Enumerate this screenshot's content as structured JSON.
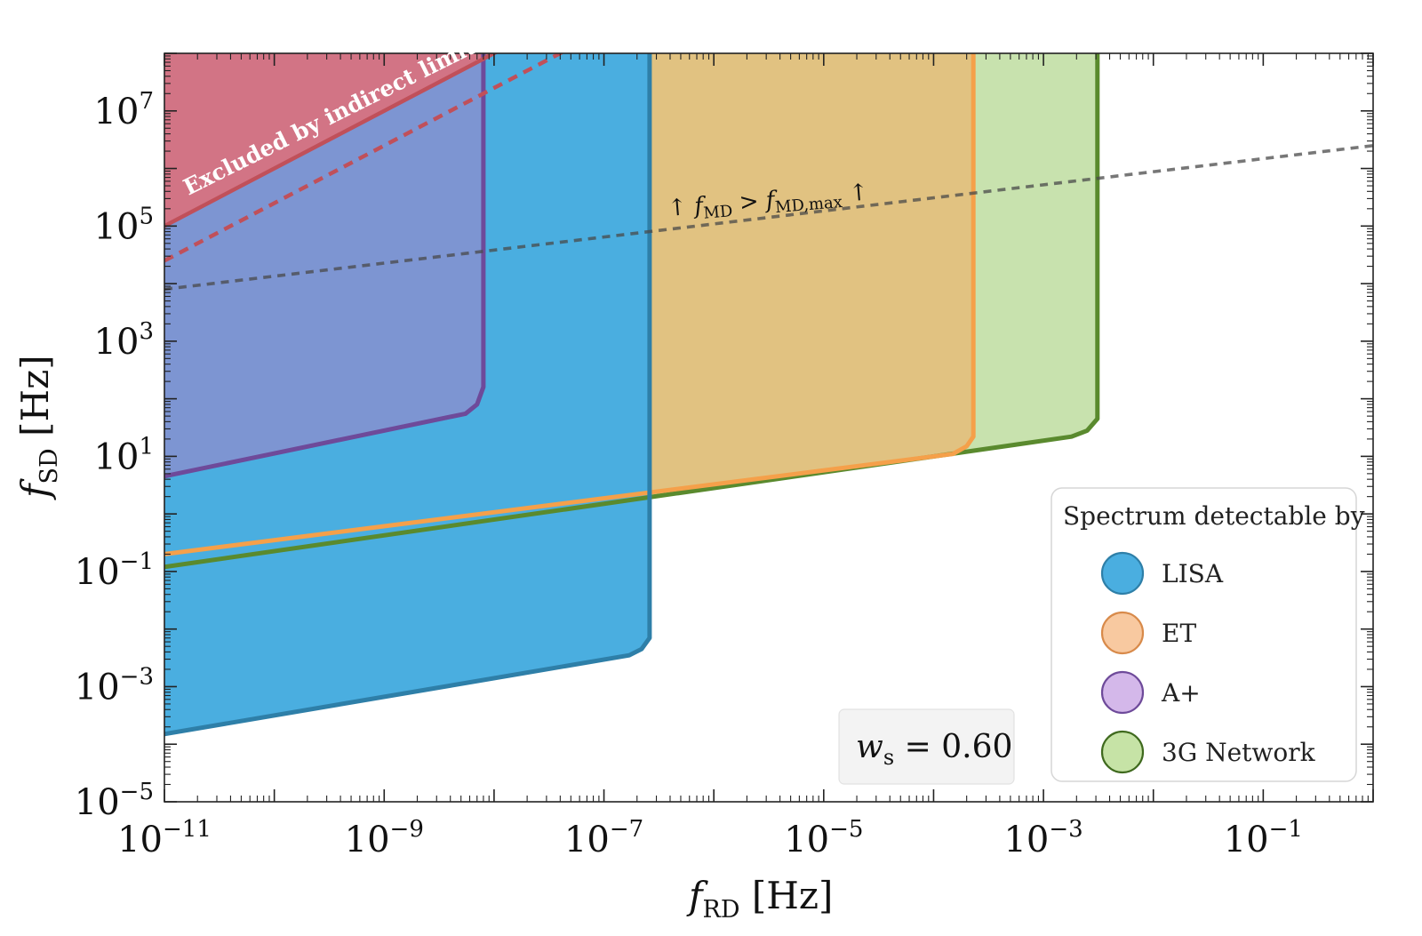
{
  "chart_data": {
    "type": "area",
    "x_axis": {
      "symbol": "f",
      "subscript": "RD",
      "unit": "[Hz]",
      "scale": "log",
      "range": [
        1e-11,
        1
      ],
      "tick_labels": [
        {
          "value": 1e-11,
          "base": "10",
          "exp": "−11"
        },
        {
          "value": 1e-09,
          "base": "10",
          "exp": "−9"
        },
        {
          "value": 1e-07,
          "base": "10",
          "exp": "−7"
        },
        {
          "value": 1e-05,
          "base": "10",
          "exp": "−5"
        },
        {
          "value": 0.001,
          "base": "10",
          "exp": "−3"
        },
        {
          "value": 0.1,
          "base": "10",
          "exp": "−1"
        }
      ]
    },
    "y_axis": {
      "symbol": "f",
      "subscript": "SD",
      "unit": "[Hz]",
      "scale": "log",
      "range": [
        1e-05,
        100000000.0
      ],
      "tick_labels": [
        {
          "value": 1e-05,
          "base": "10",
          "exp": "−5"
        },
        {
          "value": 0.001,
          "base": "10",
          "exp": "−3"
        },
        {
          "value": 0.1,
          "base": "10",
          "exp": "−1"
        },
        {
          "value": 10.0,
          "base": "10",
          "exp": "1"
        },
        {
          "value": 1000.0,
          "base": "10",
          "exp": "3"
        },
        {
          "value": 100000.0,
          "base": "10",
          "exp": "5"
        },
        {
          "value": 10000000.0,
          "base": "10",
          "exp": "7"
        }
      ]
    },
    "grid": false,
    "regions": [
      {
        "key": "3g",
        "name": "3G Network",
        "fill": "#a6d17d",
        "fill_opacity": 0.62,
        "edge": "#5a8a2e",
        "points": [
          [
            1e-11,
            0.12
          ],
          [
            0.0018,
            22
          ],
          [
            0.0025,
            28
          ],
          [
            0.0031,
            45
          ],
          [
            0.0031,
            100000000.0
          ],
          [
            1e-11,
            100000000.0
          ]
        ]
      },
      {
        "key": "et",
        "name": "ET",
        "fill": "#f5a85c",
        "fill_opacity": 0.55,
        "edge": "#f5a04a",
        "points": [
          [
            1e-11,
            0.2
          ],
          [
            0.00015,
            11
          ],
          [
            0.0002,
            15
          ],
          [
            0.00023,
            22
          ],
          [
            0.00023,
            100000000.0
          ],
          [
            1e-11,
            100000000.0
          ]
        ]
      },
      {
        "key": "lisa",
        "name": "LISA",
        "fill": "#4aaee0",
        "fill_opacity": 1.0,
        "edge": "#2e7fa8",
        "points": [
          [
            1e-11,
            0.00015
          ],
          [
            1.7e-07,
            0.0035
          ],
          [
            2.2e-07,
            0.0045
          ],
          [
            2.6e-07,
            0.007
          ],
          [
            2.6e-07,
            100000000.0
          ],
          [
            1e-11,
            100000000.0
          ]
        ]
      },
      {
        "key": "aplus",
        "name": "A+",
        "fill": "#a084c8",
        "fill_opacity": 0.6,
        "edge": "#6e4a9a",
        "points": [
          [
            1e-11,
            4.5
          ],
          [
            5.5e-09,
            55
          ],
          [
            7e-09,
            80
          ],
          [
            8e-09,
            160
          ],
          [
            8e-09,
            100000000.0
          ],
          [
            1e-11,
            100000000.0
          ]
        ]
      }
    ],
    "indirect_limit": {
      "label": "Excluded by indirect limits",
      "fill": "#e06f78",
      "fill_opacity": 0.85,
      "edge": "#c0505a",
      "line": [
        [
          1e-11,
          100000.0
        ],
        [
          1e-07,
          1000000000.0
        ]
      ],
      "dashed_line": [
        [
          1e-11,
          25000.0
        ],
        [
          1e-07,
          250000000.0
        ]
      ]
    },
    "fmd_line": {
      "label": "↑ f_MD > f_MD,max ↑",
      "color": "#777777",
      "points": [
        [
          1e-11,
          8000
        ],
        [
          1,
          2500000.0
        ]
      ]
    },
    "legend": {
      "title": "Spectrum detectable by",
      "placement": "lower-right",
      "entries": [
        {
          "label": "LISA",
          "fill": "#4aaee0",
          "edge": "#2e7fa8"
        },
        {
          "label": "ET",
          "fill": "#f8c9a0",
          "edge": "#d88a4a"
        },
        {
          "label": "A+",
          "fill": "#d4b8ea",
          "edge": "#6e4a9a"
        },
        {
          "label": "3G Network",
          "fill": "#c6e3a6",
          "edge": "#3f6a1e"
        }
      ]
    },
    "param_box": {
      "symbol": "w",
      "subscript": "s",
      "value_text": "= 0.60"
    }
  }
}
